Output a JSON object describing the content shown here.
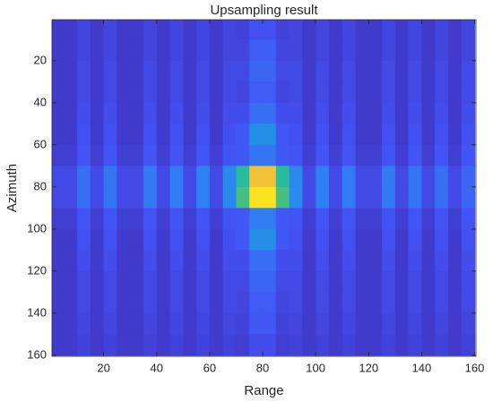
{
  "chart_data": {
    "type": "heatmap",
    "title": "Upsampling result",
    "x_label": "Range",
    "y_label": "Azimuth",
    "x": [
      2.5,
      7.5,
      12.5,
      17.5,
      22.5,
      27.5,
      32.5,
      37.5,
      42.5,
      47.5,
      52.5,
      57.5,
      62.5,
      67.5,
      72.5,
      77.5,
      82.5,
      87.5,
      92.5,
      97.5,
      102.5,
      107.5,
      112.5,
      117.5,
      122.5,
      127.5,
      132.5,
      137.5,
      142.5,
      147.5,
      152.5,
      157.5
    ],
    "y": [
      5,
      15,
      25,
      35,
      45,
      55,
      65,
      75,
      85,
      95,
      105,
      115,
      125,
      135,
      145,
      155
    ],
    "values": [
      [
        6,
        6,
        9,
        6,
        9,
        6,
        6,
        9,
        6,
        9,
        6,
        9,
        6,
        9,
        8,
        12,
        12,
        8,
        9,
        6,
        9,
        6,
        9,
        6,
        6,
        9,
        6,
        9,
        6,
        9,
        6,
        9
      ],
      [
        6,
        6,
        9,
        6,
        9,
        6,
        6,
        9,
        6,
        9,
        6,
        9,
        6,
        9,
        9,
        16,
        16,
        9,
        9,
        6,
        9,
        6,
        9,
        6,
        6,
        9,
        6,
        9,
        6,
        9,
        6,
        9
      ],
      [
        6,
        6,
        10,
        6,
        10,
        6,
        6,
        10,
        6,
        10,
        6,
        10,
        6,
        10,
        10,
        18,
        18,
        10,
        10,
        6,
        10,
        6,
        10,
        6,
        6,
        10,
        6,
        10,
        6,
        10,
        6,
        10
      ],
      [
        6,
        6,
        10,
        6,
        10,
        6,
        6,
        10,
        6,
        10,
        6,
        10,
        6,
        10,
        9,
        15,
        15,
        9,
        10,
        6,
        10,
        6,
        10,
        6,
        6,
        10,
        6,
        10,
        6,
        10,
        6,
        10
      ],
      [
        6,
        6,
        11,
        6,
        11,
        6,
        6,
        11,
        6,
        11,
        6,
        11,
        6,
        11,
        11,
        20,
        20,
        11,
        11,
        6,
        11,
        6,
        11,
        6,
        6,
        11,
        6,
        11,
        6,
        11,
        6,
        11
      ],
      [
        6,
        6,
        12,
        6,
        12,
        6,
        6,
        12,
        6,
        12,
        6,
        12,
        6,
        12,
        14,
        30,
        30,
        14,
        12,
        6,
        12,
        6,
        12,
        6,
        6,
        12,
        6,
        12,
        6,
        12,
        6,
        12
      ],
      [
        7,
        7,
        13,
        7,
        13,
        7,
        7,
        13,
        7,
        13,
        7,
        13,
        7,
        13,
        14,
        22,
        22,
        14,
        13,
        7,
        13,
        7,
        13,
        7,
        7,
        13,
        7,
        13,
        7,
        13,
        7,
        13
      ],
      [
        10,
        10,
        20,
        10,
        22,
        10,
        10,
        23,
        10,
        24,
        10,
        25,
        10,
        28,
        50,
        85,
        85,
        50,
        28,
        10,
        25,
        10,
        24,
        10,
        10,
        23,
        10,
        22,
        10,
        20,
        10,
        18
      ],
      [
        10,
        10,
        20,
        10,
        22,
        10,
        10,
        23,
        10,
        24,
        10,
        25,
        10,
        28,
        55,
        95,
        95,
        55,
        28,
        10,
        25,
        10,
        24,
        10,
        10,
        23,
        10,
        22,
        10,
        20,
        10,
        18
      ],
      [
        7,
        7,
        13,
        7,
        13,
        7,
        7,
        13,
        7,
        13,
        7,
        13,
        7,
        13,
        14,
        24,
        24,
        14,
        13,
        7,
        13,
        7,
        13,
        7,
        7,
        13,
        7,
        13,
        7,
        13,
        7,
        13
      ],
      [
        6,
        6,
        12,
        6,
        12,
        6,
        6,
        12,
        6,
        12,
        6,
        12,
        6,
        12,
        14,
        30,
        30,
        14,
        12,
        6,
        12,
        6,
        12,
        6,
        6,
        12,
        6,
        12,
        6,
        12,
        6,
        12
      ],
      [
        6,
        6,
        11,
        6,
        11,
        6,
        6,
        11,
        6,
        11,
        6,
        11,
        6,
        11,
        11,
        20,
        20,
        11,
        11,
        6,
        11,
        6,
        11,
        6,
        6,
        11,
        6,
        11,
        6,
        11,
        6,
        11
      ],
      [
        6,
        6,
        10,
        6,
        10,
        6,
        6,
        10,
        6,
        10,
        6,
        10,
        6,
        10,
        10,
        18,
        18,
        10,
        10,
        6,
        10,
        6,
        10,
        6,
        6,
        10,
        6,
        10,
        6,
        10,
        6,
        10
      ],
      [
        6,
        6,
        10,
        6,
        10,
        6,
        6,
        10,
        6,
        10,
        6,
        10,
        6,
        10,
        9,
        15,
        15,
        9,
        10,
        6,
        10,
        6,
        10,
        6,
        6,
        10,
        6,
        10,
        6,
        10,
        6,
        10
      ],
      [
        6,
        6,
        9,
        6,
        9,
        6,
        6,
        9,
        6,
        9,
        6,
        9,
        6,
        9,
        8,
        14,
        14,
        8,
        9,
        6,
        9,
        6,
        9,
        6,
        6,
        9,
        6,
        9,
        6,
        9,
        6,
        9
      ],
      [
        6,
        6,
        8,
        6,
        8,
        6,
        6,
        8,
        6,
        8,
        6,
        8,
        6,
        8,
        7,
        11,
        11,
        7,
        8,
        6,
        8,
        6,
        8,
        6,
        6,
        8,
        6,
        8,
        6,
        8,
        6,
        8
      ]
    ],
    "clim": [
      0,
      100
    ],
    "colormap": [
      "#3e26a8",
      "#4352f4",
      "#2f80f2",
      "#15a5d7",
      "#28bb9e",
      "#75c45b",
      "#c7bf33",
      "#fdc03b",
      "#f9fb0e"
    ],
    "xlim": [
      0.5,
      160.5
    ],
    "ylim": [
      0.5,
      160.5
    ],
    "y_reversed": true,
    "xticks": [
      20,
      40,
      60,
      80,
      100,
      120,
      140,
      160
    ],
    "yticks": [
      20,
      40,
      60,
      80,
      100,
      120,
      140,
      160
    ]
  }
}
